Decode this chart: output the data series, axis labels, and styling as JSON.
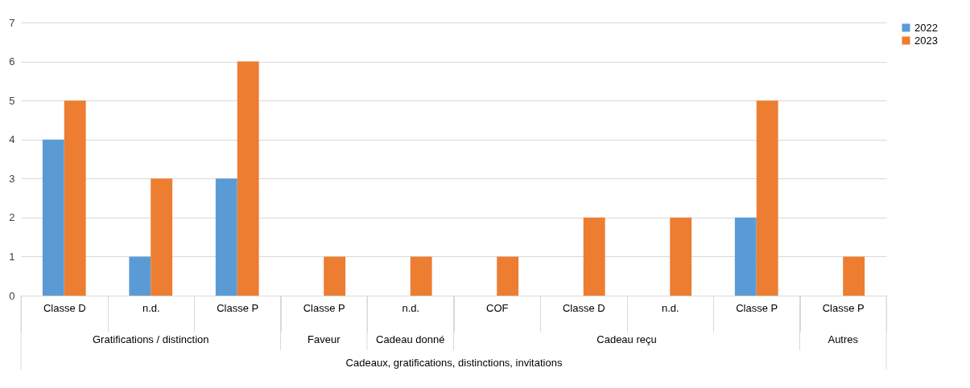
{
  "chart_data": {
    "type": "bar",
    "categories": [
      "Classe D",
      "n.d.",
      "Classe P",
      "Classe P",
      "n.d.",
      "COF",
      "Classe D",
      "n.d.",
      "Classe P",
      "Classe P"
    ],
    "series": [
      {
        "name": "2022",
        "color": "#5b9bd5",
        "values": [
          4,
          1,
          3,
          null,
          null,
          null,
          null,
          null,
          2,
          null
        ]
      },
      {
        "name": "2023",
        "color": "#ed7d31",
        "values": [
          5,
          3,
          6,
          1,
          1,
          1,
          2,
          2,
          5,
          1
        ]
      }
    ],
    "xlabel": "Cadeaux, gratifications, distinctions, invitations",
    "annotations": [
      "Gratifications / distinction",
      "Faveur",
      "Cadeau donné",
      "Cadeau reçu",
      "Autres"
    ],
    "ylim": [
      0,
      7
    ],
    "yticks": [
      0,
      1,
      2,
      3,
      4,
      5,
      6,
      7
    ],
    "grid": "y",
    "legend": "right"
  }
}
